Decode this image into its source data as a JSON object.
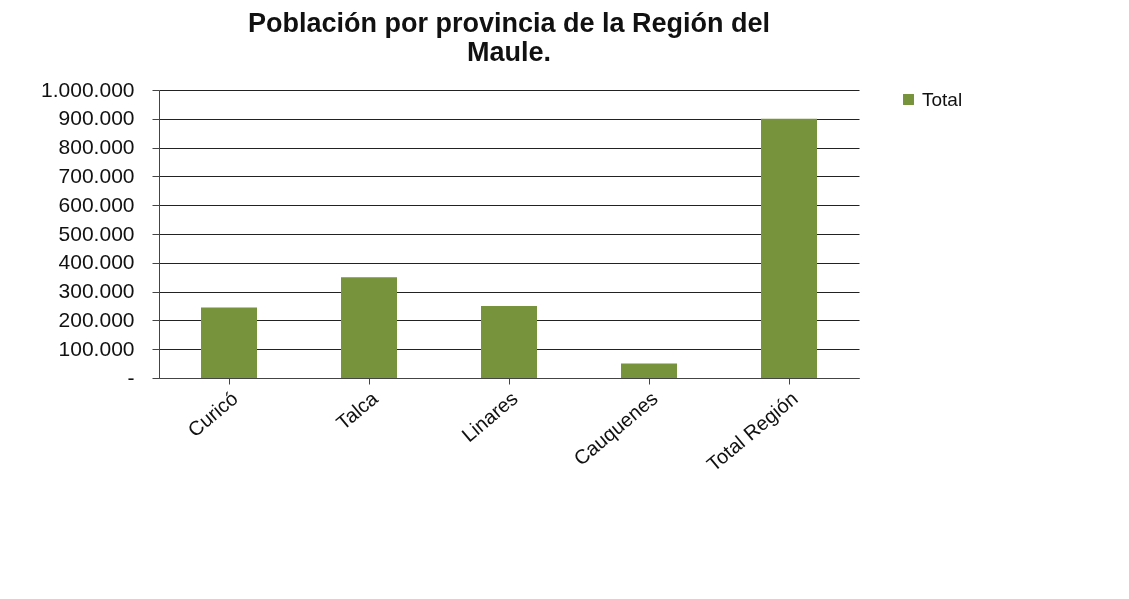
{
  "chart_data": {
    "type": "bar",
    "title": "Población por provincia de la Región del Maule.",
    "categories": [
      "Curicó",
      "Talca",
      "Linares",
      "Cauquenes",
      "Total Región"
    ],
    "series": [
      {
        "name": "Total",
        "color": "#77933c",
        "values": [
          245000,
          350000,
          250000,
          50000,
          900000
        ]
      }
    ],
    "ylim": [
      0,
      1000000
    ],
    "yticks": [
      {
        "value": 0,
        "label": "-"
      },
      {
        "value": 100000,
        "label": "100.000"
      },
      {
        "value": 200000,
        "label": "200.000"
      },
      {
        "value": 300000,
        "label": "300.000"
      },
      {
        "value": 400000,
        "label": "400.000"
      },
      {
        "value": 500000,
        "label": "500.000"
      },
      {
        "value": 600000,
        "label": "600.000"
      },
      {
        "value": 700000,
        "label": "700.000"
      },
      {
        "value": 800000,
        "label": "800.000"
      },
      {
        "value": 900000,
        "label": "900.000"
      },
      {
        "value": 1000000,
        "label": "1.000.000"
      }
    ],
    "grid": "y",
    "legend": "right"
  }
}
